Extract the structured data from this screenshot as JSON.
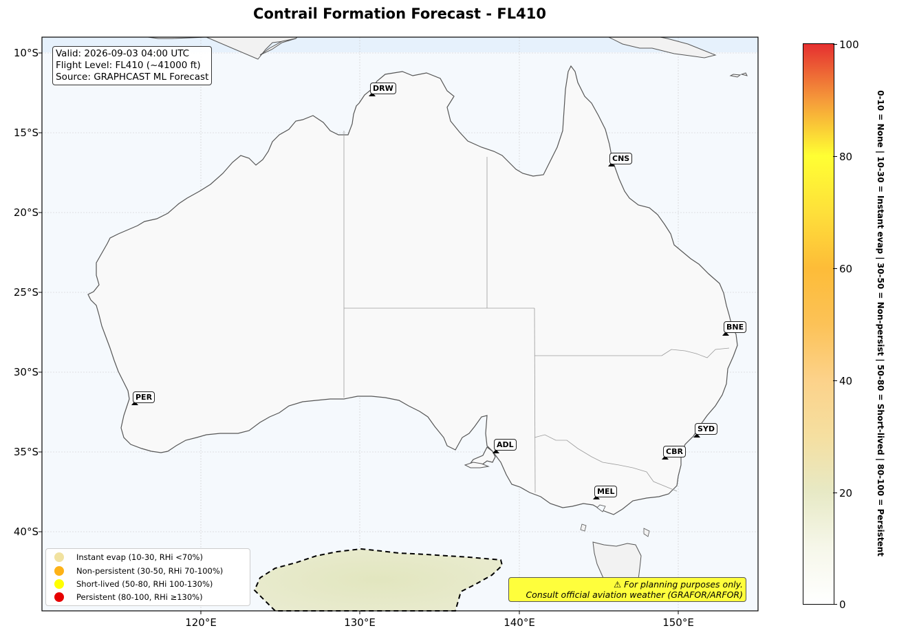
{
  "title": "Contrail Formation Forecast - FL410",
  "info": {
    "valid": "Valid: 2026-09-03 04:00 UTC",
    "flight_level": "Flight Level: FL410 (~41000 ft)",
    "source": "Source: GRAPHCAST ML Forecast"
  },
  "axes": {
    "lat_labels": [
      "10°S",
      "15°S",
      "20°S",
      "25°S",
      "30°S",
      "35°S",
      "40°S"
    ],
    "lon_labels": [
      "120°E",
      "130°E",
      "140°E",
      "150°E"
    ]
  },
  "cities": [
    {
      "code": "DRW"
    },
    {
      "code": "CNS"
    },
    {
      "code": "BNE"
    },
    {
      "code": "PER"
    },
    {
      "code": "SYD"
    },
    {
      "code": "ADL"
    },
    {
      "code": "CBR"
    },
    {
      "code": "MEL"
    }
  ],
  "legend": [
    {
      "label": "Instant evap (10-30, RHi <70%)",
      "color": "#f1e2a0"
    },
    {
      "label": "Non-persistent (30-50, RHi 70-100%)",
      "color": "#fdb217"
    },
    {
      "label": "Short-lived (50-80, RHi 100-130%)",
      "color": "#ffff00"
    },
    {
      "label": "Persistent (80-100, RHi ≥130%)",
      "color": "#e60000"
    }
  ],
  "disclaimer": {
    "line1": "⚠ For planning purposes only.",
    "line2": "Consult official aviation weather (GRAFOR/ARFOR)"
  },
  "colorbar": {
    "ticks": [
      "100",
      "80",
      "60",
      "40",
      "20",
      "0"
    ],
    "label": "0-10 = None  |  10-30 = Instant evap  |  30-50 = Non-persist  |  50-80 = Short-lived  |  80-100 = Persistent"
  }
}
